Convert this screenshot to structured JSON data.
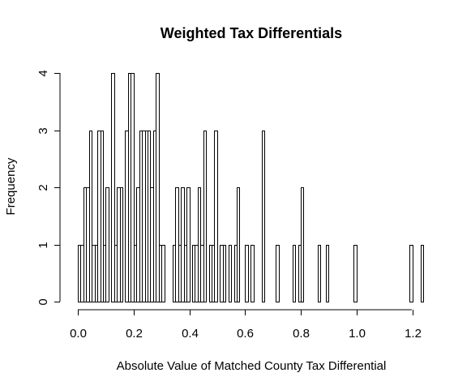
{
  "chart_data": {
    "type": "bar",
    "title": "Weighted Tax Differentials",
    "xlabel": "Absolute Value of Matched County Tax Differential",
    "ylabel": "Frequency",
    "bin_width": 0.01,
    "x_start": 0.0,
    "xlim": [
      0.0,
      1.24
    ],
    "ylim": [
      0,
      4
    ],
    "x_ticks": [
      0.0,
      0.2,
      0.4,
      0.6,
      0.8,
      1.0,
      1.2
    ],
    "x_tick_labels": [
      "0.0",
      "0.2",
      "0.4",
      "0.6",
      "0.8",
      "1.0",
      "1.2"
    ],
    "y_ticks": [
      0,
      1,
      2,
      3,
      4
    ],
    "y_tick_labels": [
      "0",
      "1",
      "2",
      "3",
      "4"
    ],
    "values": [
      1,
      1,
      2,
      2,
      3,
      1,
      1,
      3,
      3,
      1,
      2,
      0,
      4,
      1,
      2,
      2,
      0,
      3,
      4,
      4,
      1,
      2,
      3,
      3,
      3,
      3,
      2,
      3,
      4,
      1,
      1,
      0,
      0,
      0,
      1,
      2,
      1,
      2,
      1,
      2,
      0,
      1,
      1,
      2,
      1,
      3,
      0,
      1,
      1,
      3,
      0,
      1,
      1,
      0,
      1,
      0,
      1,
      2,
      0,
      0,
      1,
      0,
      1,
      0,
      0,
      0,
      3,
      0,
      0,
      0,
      0,
      1,
      0,
      0,
      0,
      0,
      0,
      1,
      0,
      1,
      2,
      0,
      0,
      0,
      0,
      0,
      1,
      0,
      0,
      1,
      0,
      0,
      0,
      0,
      0,
      0,
      0,
      0,
      0,
      1,
      0,
      0,
      0,
      0,
      0,
      0,
      0,
      0,
      0,
      0,
      0,
      0,
      0,
      0,
      0,
      0,
      0,
      0,
      0,
      1,
      0,
      0,
      0,
      1
    ],
    "grid": false,
    "legend": "none"
  }
}
